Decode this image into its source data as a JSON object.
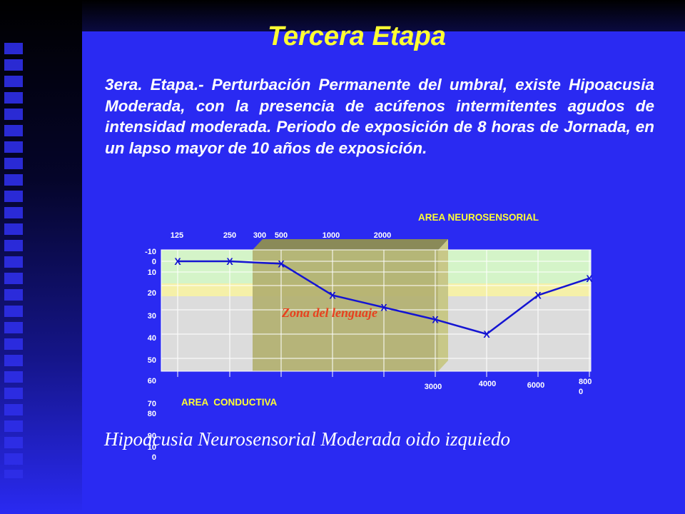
{
  "title": "Tercera Etapa",
  "body_text": "3era. Etapa.- Perturbación Permanente del umbral, existe Hipoacusia Moderada, con la presencia de acúfenos intermitentes  agudos de intensidad moderada. Periodo de exposición de 8 horas de Jornada, en un lapso mayor  de 10 años de exposición.",
  "caption": "Hipoacusia Neurosensorial Moderada oido izquiedo",
  "colors": {
    "background": "#2a2af2",
    "title": "#ffff33",
    "series": "#1414d2",
    "zone_text": "#e8401e",
    "area_label": "#ffff33"
  },
  "chart_data": {
    "type": "line",
    "x_labels_top": [
      "125",
      "250",
      "300",
      "500",
      "1000",
      "2000"
    ],
    "x_labels_bottom": [
      "3000",
      "4000",
      "6000",
      "800\n0"
    ],
    "y_tick_labels": [
      "-10",
      "0",
      "10",
      "20",
      "30",
      "40",
      "50",
      "60",
      "70",
      "80",
      "90",
      "10\n0"
    ],
    "ylim": [
      -10,
      100
    ],
    "area_neuro_label": "AREA NEUROSENSORIAL",
    "area_conductive_label": "AREA  CONDUCTIVA",
    "zone_label": "Zona del lenguaje",
    "marker": "X",
    "grid": true,
    "series": [
      {
        "x": [
          125,
          250,
          500,
          1000,
          2000,
          3000,
          4000,
          6000,
          8000
        ],
        "values": [
          10,
          10,
          11,
          24,
          29,
          34,
          40,
          24,
          17
        ]
      }
    ]
  }
}
